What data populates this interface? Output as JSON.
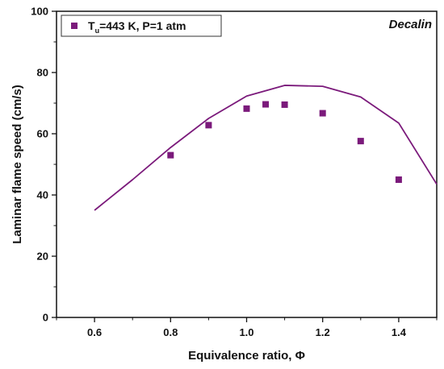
{
  "chart_data": {
    "type": "scatter",
    "xlabel": "Equivalence ratio, Φ",
    "ylabel": "Laminar flame speed (cm/s)",
    "xlim": [
      0.5,
      1.5
    ],
    "ylim": [
      0,
      100
    ],
    "x_ticks": [
      0.6,
      0.8,
      1.0,
      1.2,
      1.4
    ],
    "y_ticks": [
      0,
      20,
      40,
      60,
      80,
      100
    ],
    "annotation": "Decalin",
    "legend": {
      "position": "top-left",
      "prefix": "T",
      "subscript": "u",
      "suffix": "=443 K, P=1 atm"
    },
    "series": [
      {
        "name": "Tu=443 K, P=1 atm",
        "kind": "scatter",
        "marker": "square",
        "color": "#7b1a7b",
        "x": [
          0.8,
          0.9,
          1.0,
          1.05,
          1.1,
          1.2,
          1.3,
          1.4
        ],
        "y": [
          53.0,
          62.8,
          68.2,
          69.6,
          69.5,
          66.7,
          57.6,
          45.0
        ]
      },
      {
        "kind": "line",
        "color": "#7b1a7b",
        "x": [
          0.6,
          0.7,
          0.8,
          0.9,
          1.0,
          1.1,
          1.2,
          1.3,
          1.4,
          1.5
        ],
        "y": [
          35.0,
          45.0,
          55.5,
          65.0,
          72.3,
          75.8,
          75.5,
          72.0,
          63.5,
          43.5
        ]
      }
    ]
  }
}
